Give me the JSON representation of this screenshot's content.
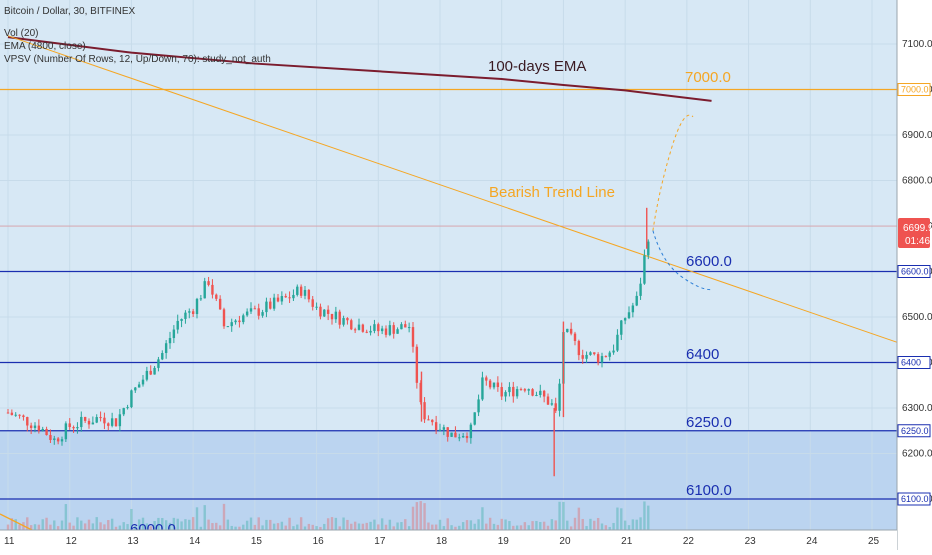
{
  "header": {
    "symbol_line": "Bitcoin / Dollar, 30, BITFINEX",
    "indicators": [
      "Vol (20)",
      "EMA (4800, close)",
      "VPSV (Number Of Rows, 12, Up/Down, 70): study_not_auth"
    ]
  },
  "annotations": {
    "ema_label": "100-days EMA",
    "trend_label": "Bearish Trend Line",
    "level_labels": [
      "7000.0",
      "6600.0",
      "6400",
      "6250.0",
      "6100.0",
      "6000.0"
    ]
  },
  "price_tag": {
    "value": "6699.9",
    "countdown": "01:46"
  },
  "colors": {
    "background": "#d7e8f5",
    "lower_zone": "#b6d0ee",
    "bull": "#26a69a",
    "bear": "#ef5350",
    "ema": "#7b1c2e",
    "orange": "#f5a623",
    "blue_level": "#1a2fb0",
    "price_tag": "#ef5350"
  },
  "chart_data": {
    "type": "line",
    "title": "Bitcoin / Dollar, 30, BITFINEX",
    "xlabel": "",
    "ylabel": "",
    "x_ticks": [
      "11",
      "12",
      "13",
      "14",
      "15",
      "16",
      "17",
      "18",
      "19",
      "20",
      "21",
      "22",
      "23",
      "24",
      "25"
    ],
    "y_ticks": [
      "6100.0",
      "6200.0",
      "6300.0",
      "6400.0",
      "6500.0",
      "6600.0",
      "6700.0",
      "6800.0",
      "6900.0",
      "7000.0",
      "7100.0"
    ],
    "xlim": [
      11,
      25.5
    ],
    "ylim": [
      6085,
      7180
    ],
    "horizontal_levels": [
      {
        "value": 7000,
        "label": "7000.0",
        "color": "#f5a623"
      },
      {
        "value": 6600,
        "label": "6600.0",
        "color": "#1a2fb0"
      },
      {
        "value": 6400,
        "label": "6400",
        "color": "#1a2fb0"
      },
      {
        "value": 6250,
        "label": "6250.0",
        "color": "#1a2fb0"
      },
      {
        "value": 6100,
        "label": "6100.0",
        "color": "#1a2fb0"
      }
    ],
    "current_price": 6699.9,
    "series": [
      {
        "name": "100-days EMA",
        "x": [
          11.0,
          13.0,
          15.0,
          17.0,
          19.0,
          20.0,
          21.0,
          22.4
        ],
        "y": [
          7115,
          7081,
          7057,
          7040,
          7023,
          7010,
          6998,
          6975
        ]
      },
      {
        "name": "Bearish Trend Line",
        "x": [
          11.0,
          25.5
        ],
        "y": [
          7118,
          6440
        ]
      },
      {
        "name": "Bitcoin / Dollar",
        "x": [
          11.0,
          11.5,
          11.75,
          12.0,
          12.5,
          12.75,
          13.0,
          13.5,
          13.75,
          14.0,
          14.25,
          14.5,
          14.75,
          15.0,
          15.5,
          15.75,
          16.0,
          16.5,
          17.0,
          17.5,
          17.7,
          17.9,
          18.2,
          18.5,
          18.7,
          19.0,
          19.4,
          19.8,
          19.9,
          20.0,
          20.3,
          20.6,
          20.8,
          21.0,
          21.2,
          21.35,
          21.4
        ],
        "y": [
          6290,
          6260,
          6230,
          6260,
          6280,
          6270,
          6330,
          6420,
          6490,
          6520,
          6580,
          6480,
          6500,
          6510,
          6540,
          6560,
          6520,
          6490,
          6470,
          6480,
          6290,
          6270,
          6240,
          6250,
          6360,
          6330,
          6350,
          6310,
          6280,
          6470,
          6420,
          6410,
          6430,
          6500,
          6540,
          6660,
          6699.9
        ]
      }
    ]
  }
}
